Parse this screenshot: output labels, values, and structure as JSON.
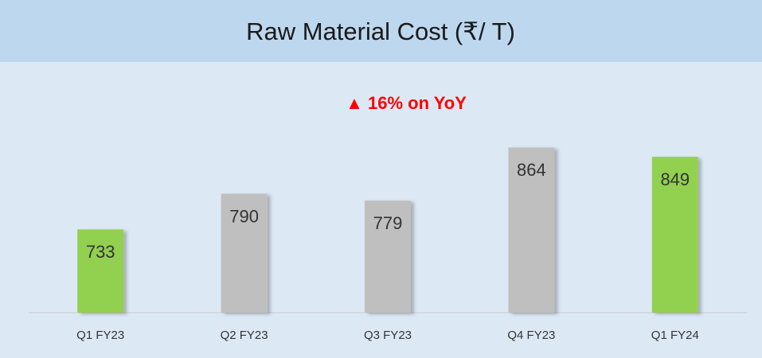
{
  "chart_data": {
    "type": "bar",
    "title": "Raw Material Cost (₹/ T)",
    "annotation": "▲  16% on YoY",
    "categories": [
      "Q1 FY23",
      "Q2 FY23",
      "Q3 FY23",
      "Q4 FY23",
      "Q1 FY24"
    ],
    "values": [
      733,
      790,
      779,
      864,
      849
    ],
    "colors": [
      "#92d050",
      "#bfbfbf",
      "#bfbfbf",
      "#bfbfbf",
      "#92d050"
    ],
    "ylim": [
      600,
      900
    ]
  }
}
